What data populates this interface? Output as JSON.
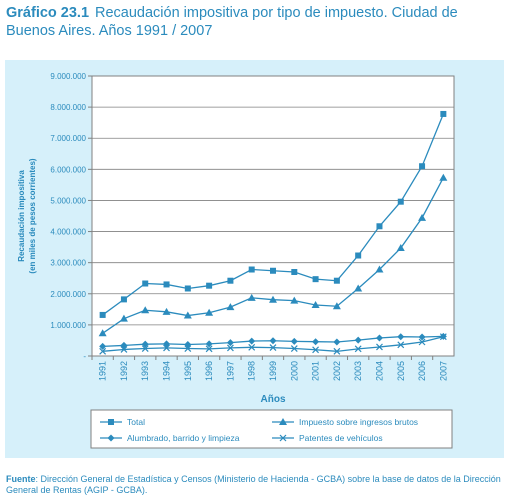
{
  "title": {
    "prefix": "Gráfico 23.1",
    "text": "Recaudación impositiva por tipo de impuesto. Ciudad de Buenos Aires. Años 1991 / 2007"
  },
  "source": {
    "label": "Fuente",
    "text": ": Dirección General de Estadística y Censos (Ministerio de Hacienda - GCBA) sobre la base de datos de la Dirección General de Rentas (AGIP - GCBA)."
  },
  "colors": {
    "accent": "#2b8bbd",
    "plot_bg": "#ffffff",
    "chart_bg": "#d6f0fa",
    "grid": "#808080"
  },
  "chart_data": {
    "type": "line",
    "xlabel": "Años",
    "ylabel": "Recaudación impositiva\n(en miles de pesos corrientes)",
    "ylim": [
      0,
      9000000
    ],
    "yticks": [
      "9.000.000",
      "8.000.000",
      "7.000.000",
      "6.000.000",
      "5.000.000",
      "4.000.000",
      "3.000.000",
      "2.000.000",
      "1.000.000",
      "-"
    ],
    "categories": [
      "1991",
      "1992",
      "1993",
      "1994",
      "1995",
      "1996",
      "1997",
      "1998",
      "1999",
      "2000",
      "2001",
      "2002",
      "2003",
      "2004",
      "2005",
      "2006",
      "2007"
    ],
    "grid": "horizontal",
    "legend_position": "bottom",
    "series": [
      {
        "name": "Total",
        "marker": "square",
        "values": [
          1320000,
          1820000,
          2330000,
          2300000,
          2170000,
          2260000,
          2420000,
          2780000,
          2740000,
          2700000,
          2470000,
          2420000,
          3230000,
          4170000,
          4960000,
          6100000,
          7780000
        ]
      },
      {
        "name": "Impuesto sobre ingresos brutos",
        "marker": "triangle",
        "values": [
          730000,
          1200000,
          1470000,
          1420000,
          1300000,
          1390000,
          1570000,
          1870000,
          1810000,
          1780000,
          1640000,
          1600000,
          2170000,
          2780000,
          3470000,
          4440000,
          5730000
        ]
      },
      {
        "name": "Alumbrado, barrido y limpieza",
        "marker": "diamond",
        "values": [
          310000,
          340000,
          380000,
          390000,
          370000,
          390000,
          430000,
          480000,
          490000,
          470000,
          460000,
          450000,
          510000,
          580000,
          620000,
          610000,
          630000
        ]
      },
      {
        "name": "Patentes de vehículos",
        "marker": "x",
        "values": [
          150000,
          210000,
          240000,
          260000,
          240000,
          230000,
          260000,
          280000,
          270000,
          240000,
          200000,
          150000,
          230000,
          290000,
          360000,
          450000,
          620000
        ]
      }
    ]
  }
}
